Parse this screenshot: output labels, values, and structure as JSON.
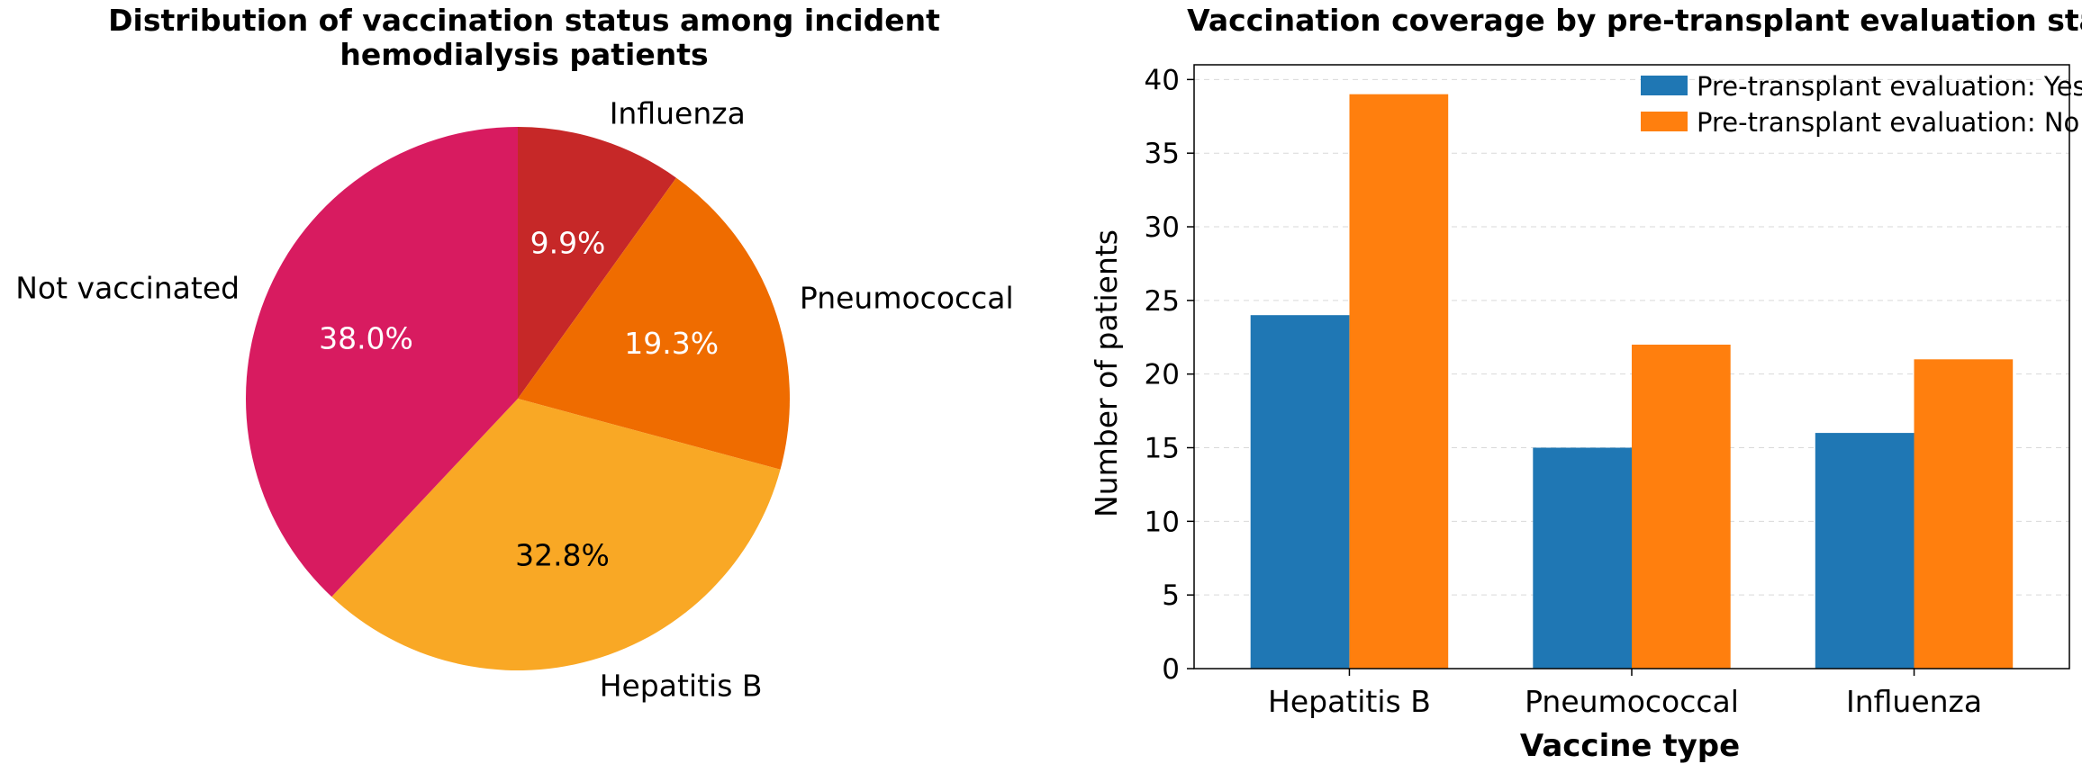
{
  "chart_data": [
    {
      "type": "pie",
      "title": "Distribution of vaccination status among incident hemodialysis patients",
      "title_lines": [
        "Distribution of vaccination status among incident",
        "hemodialysis patients"
      ],
      "slices": [
        {
          "label": "Influenza",
          "value": 9.9,
          "pct_label": "9.9%",
          "color": "#c62828",
          "pct_color": "#ffffff"
        },
        {
          "label": "Pneumococcal",
          "value": 19.3,
          "pct_label": "19.3%",
          "color": "#ef6c00",
          "pct_color": "#ffffff"
        },
        {
          "label": "Hepatitis B",
          "value": 32.8,
          "pct_label": "32.8%",
          "color": "#f9a825",
          "pct_color": "#000000"
        },
        {
          "label": "Not vaccinated",
          "value": 38.0,
          "pct_label": "38.0%",
          "color": "#d81b60",
          "pct_color": "#ffffff"
        }
      ],
      "start": "top, clockwise"
    },
    {
      "type": "bar",
      "title": "Vaccination coverage by pre-transplant evaluation status",
      "categories": [
        "Hepatitis B",
        "Pneumococcal",
        "Influenza"
      ],
      "series": [
        {
          "name": "Pre-transplant evaluation: Yes",
          "values": [
            24,
            15,
            16
          ],
          "color": "#1f77b4"
        },
        {
          "name": "Pre-transplant evaluation: No",
          "values": [
            39,
            22,
            21
          ],
          "color": "#ff7f0e"
        }
      ],
      "xlabel": "Vaccine type",
      "ylabel": "Number of patients",
      "ylim": [
        0,
        41
      ],
      "yticks": [
        0,
        5,
        10,
        15,
        20,
        25,
        30,
        35,
        40
      ],
      "grid": "y, dashed",
      "legend": "top-right"
    }
  ]
}
